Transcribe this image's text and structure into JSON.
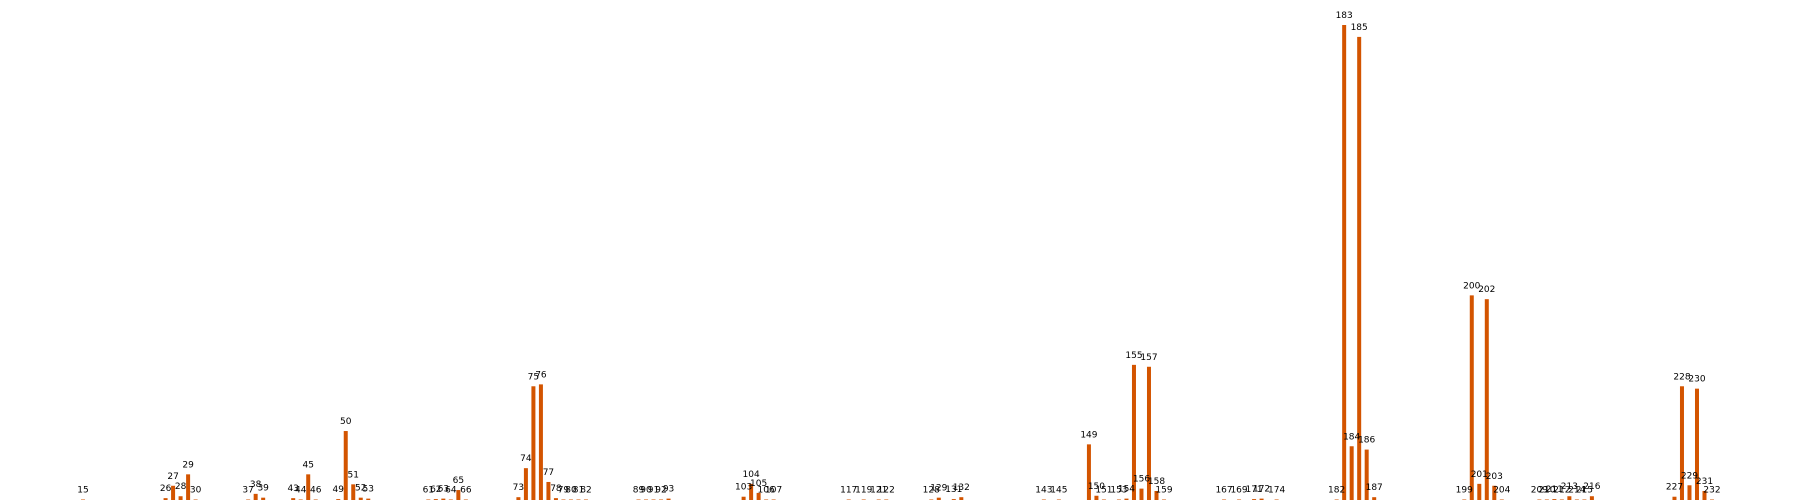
{
  "chart_data": {
    "type": "bar",
    "title": "",
    "xlabel": "",
    "ylabel": "",
    "grid": false,
    "legend": "none",
    "bar_color": "#d35400",
    "ylim": [
      0,
      1040
    ],
    "x": [
      15,
      26,
      27,
      28,
      29,
      30,
      37,
      38,
      39,
      43,
      44,
      45,
      46,
      49,
      50,
      51,
      52,
      53,
      61,
      62,
      63,
      64,
      65,
      66,
      73,
      74,
      75,
      76,
      77,
      78,
      79,
      80,
      81,
      82,
      89,
      90,
      91,
      92,
      93,
      103,
      104,
      105,
      106,
      107,
      117,
      119,
      121,
      122,
      128,
      129,
      131,
      132,
      143,
      145,
      149,
      150,
      151,
      153,
      154,
      155,
      156,
      157,
      158,
      159,
      167,
      169,
      171,
      172,
      174,
      182,
      183,
      184,
      185,
      186,
      187,
      199,
      200,
      201,
      202,
      203,
      204,
      209,
      210,
      211,
      212,
      213,
      214,
      215,
      216,
      227,
      228,
      229,
      230,
      231,
      232
    ],
    "labels": [
      "15",
      "26",
      "27",
      "28",
      "29",
      "30",
      "37",
      "38",
      "39",
      "43",
      "44",
      "45",
      "46",
      "49",
      "50",
      "51",
      "52",
      "53",
      "61",
      "62",
      "63",
      "64",
      "65",
      "66",
      "73",
      "74",
      "75",
      "76",
      "77",
      "78",
      "79",
      "80",
      "81",
      "82",
      "89",
      "90",
      "91",
      "92",
      "93",
      "103",
      "104",
      "105",
      "106",
      "107",
      "117",
      "119",
      "121",
      "122",
      "128",
      "129",
      "131",
      "132",
      "143",
      "145",
      "149",
      "150",
      "151",
      "153",
      "154",
      "155",
      "156",
      "157",
      "158",
      "159",
      "167",
      "169",
      "171",
      "172",
      "174",
      "182",
      "183",
      "184",
      "185",
      "186",
      "187",
      "199",
      "200",
      "201",
      "202",
      "203",
      "204",
      "209",
      "210",
      "211",
      "212",
      "213",
      "214",
      "215",
      "216",
      "227",
      "228",
      "229",
      "230",
      "231",
      "232"
    ],
    "values": [
      1,
      6,
      32,
      10,
      56,
      2,
      2,
      15,
      7,
      6,
      1,
      56,
      1,
      4,
      147,
      35,
      7,
      5,
      1,
      4,
      5,
      2,
      23,
      1,
      8,
      69,
      241,
      245,
      40,
      6,
      1,
      3,
      2,
      1,
      1,
      2,
      2,
      2,
      5,
      9,
      36,
      17,
      1,
      3,
      1,
      1,
      1,
      1,
      1,
      7,
      4,
      8,
      1,
      2,
      119,
      11,
      1,
      1,
      5,
      286,
      26,
      282,
      21,
      1,
      1,
      1,
      4,
      5,
      1,
      3,
      1000,
      115,
      975,
      108,
      8,
      1,
      432,
      36,
      424,
      32,
      3,
      2,
      3,
      4,
      3,
      10,
      2,
      1,
      10,
      9,
      241,
      33,
      236,
      21,
      3
    ]
  }
}
